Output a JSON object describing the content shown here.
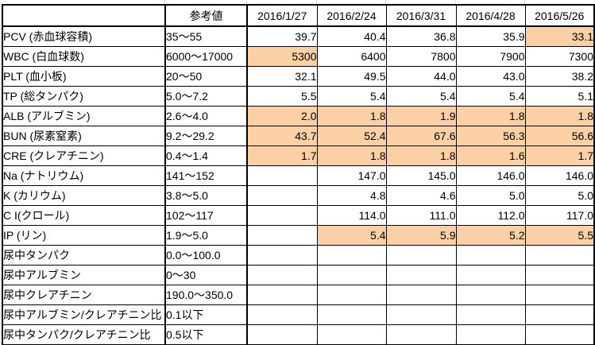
{
  "highlight_color": "#FBD0A4",
  "chart_data": {
    "type": "table",
    "title": "",
    "columns": [
      "",
      "参考値",
      "2016/1/27",
      "2016/2/24",
      "2016/3/31",
      "2016/4/28",
      "2016/5/26"
    ],
    "highlight_meaning": "out-of-range value",
    "rows": [
      {
        "label": "PCV (赤血球容積)",
        "ref": "35～55",
        "values": [
          "39.7",
          "40.4",
          "36.8",
          "35.9",
          "33.1"
        ],
        "highlights": [
          false,
          false,
          false,
          false,
          true
        ]
      },
      {
        "label": "WBC (白血球数)",
        "ref": "6000～17000",
        "values": [
          "5300",
          "6400",
          "7800",
          "7900",
          "7300"
        ],
        "highlights": [
          true,
          false,
          false,
          false,
          false
        ]
      },
      {
        "label": "PLT (血小板)",
        "ref": "20～50",
        "values": [
          "32.1",
          "49.5",
          "44.0",
          "43.0",
          "38.2"
        ],
        "highlights": [
          false,
          false,
          false,
          false,
          false
        ]
      },
      {
        "label": "TP (総タンパク)",
        "ref": "5.0～7.2",
        "values": [
          "5.5",
          "5.4",
          "5.4",
          "5.4",
          "5.1"
        ],
        "highlights": [
          false,
          false,
          false,
          false,
          false
        ]
      },
      {
        "label": "ALB (アルブミン)",
        "ref": "2.6～4.0",
        "values": [
          "2.0",
          "1.8",
          "1.9",
          "1.8",
          "1.8"
        ],
        "highlights": [
          true,
          true,
          true,
          true,
          true
        ]
      },
      {
        "label": "BUN (尿素窒素)",
        "ref": "9.2～29.2",
        "values": [
          "43.7",
          "52.4",
          "67.6",
          "56.3",
          "56.6"
        ],
        "highlights": [
          true,
          true,
          true,
          true,
          true
        ]
      },
      {
        "label": "CRE (クレアチニン)",
        "ref": "0.4～1.4",
        "values": [
          "1.7",
          "1.8",
          "1.8",
          "1.6",
          "1.7"
        ],
        "highlights": [
          true,
          true,
          true,
          true,
          true
        ]
      },
      {
        "label": "Na (ナトリウム)",
        "ref": "141～152",
        "values": [
          "",
          "147.0",
          "145.0",
          "146.0",
          "146.0"
        ],
        "highlights": [
          false,
          false,
          false,
          false,
          false
        ]
      },
      {
        "label": "K (カリウム)",
        "ref": "3.8～5.0",
        "values": [
          "",
          "4.8",
          "4.6",
          "5.0",
          "5.0"
        ],
        "highlights": [
          false,
          false,
          false,
          false,
          false
        ]
      },
      {
        "label": "C I(クロール)",
        "ref": "102～117",
        "values": [
          "",
          "114.0",
          "111.0",
          "112.0",
          "117.0"
        ],
        "highlights": [
          false,
          false,
          false,
          false,
          false
        ]
      },
      {
        "label": "IP (リン)",
        "ref": "1.9～5.0",
        "values": [
          "",
          "5.4",
          "5.9",
          "5.2",
          "5.5"
        ],
        "highlights": [
          false,
          true,
          true,
          true,
          true
        ]
      },
      {
        "label": "尿中タンパク",
        "ref": "0.0～100.0",
        "values": [
          "",
          "",
          "",
          "",
          ""
        ],
        "highlights": [
          false,
          false,
          false,
          false,
          false
        ]
      },
      {
        "label": "尿中アルブミン",
        "ref": "0～30",
        "values": [
          "",
          "",
          "",
          "",
          ""
        ],
        "highlights": [
          false,
          false,
          false,
          false,
          false
        ]
      },
      {
        "label": "尿中クレアチニン",
        "ref": "190.0～350.0",
        "values": [
          "",
          "",
          "",
          "",
          ""
        ],
        "highlights": [
          false,
          false,
          false,
          false,
          false
        ]
      },
      {
        "label": "尿中アルブミン/クレアチニン比",
        "ref": "0.1以下",
        "values": [
          "",
          "",
          "",
          "",
          ""
        ],
        "highlights": [
          false,
          false,
          false,
          false,
          false
        ]
      },
      {
        "label": "尿中タンパク/クレアチニン比",
        "ref": "0.5以下",
        "values": [
          "",
          "",
          "",
          "",
          ""
        ],
        "highlights": [
          false,
          false,
          false,
          false,
          false
        ]
      }
    ]
  }
}
